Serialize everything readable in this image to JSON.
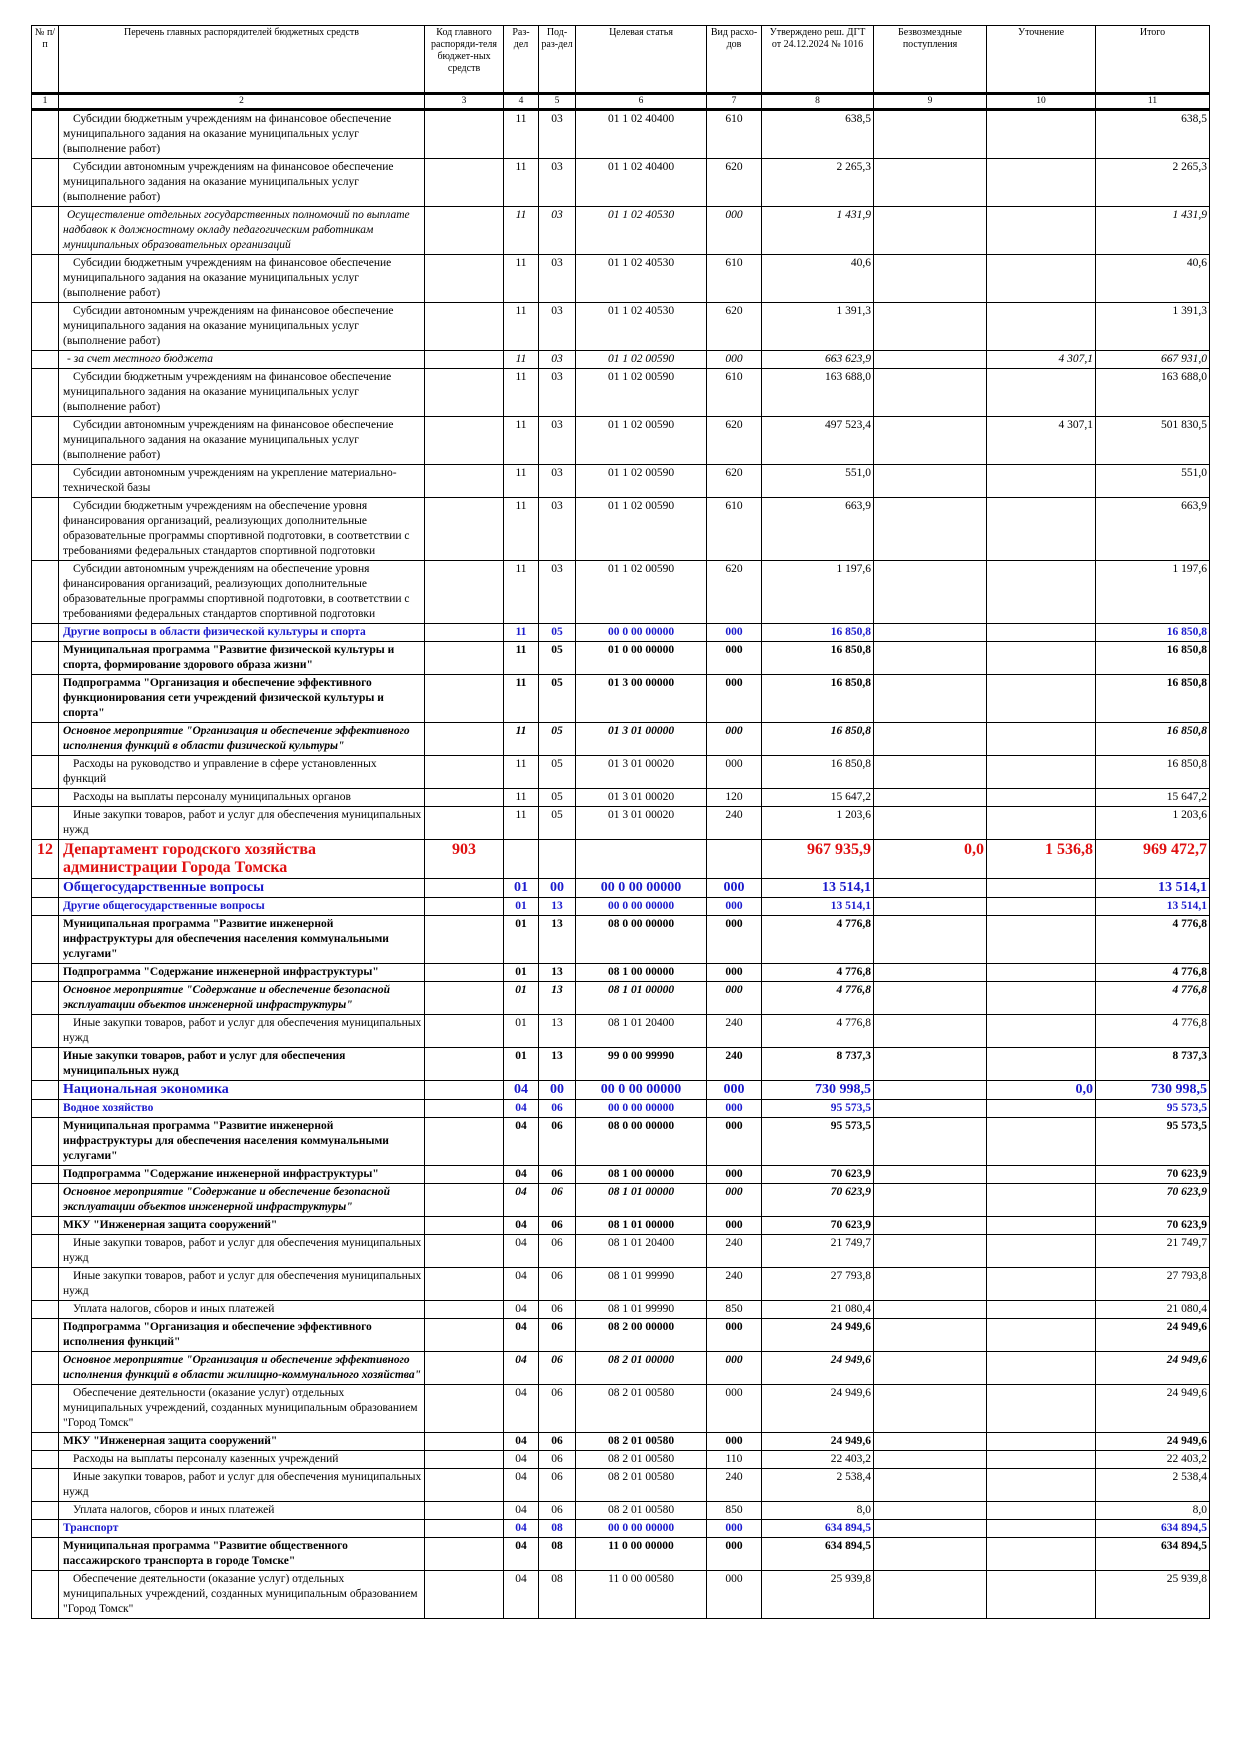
{
  "table": {
    "columns": [
      "№ п/п",
      "Перечень главных распорядителей бюджетных средств",
      "Код главного распоряди-теля бюджет-ных средств",
      "Раз-дел",
      "Под-раз-дел",
      "Целевая статья",
      "Вид расхо-дов",
      "Утверждено реш. ДГТ от 24.12.2024 № 1016",
      "Безвозмездные поступления",
      "Уточнение",
      "Итого"
    ],
    "numbers": [
      "1",
      "2",
      "3",
      "4",
      "5",
      "6",
      "7",
      "8",
      "9",
      "10",
      "11"
    ],
    "rows": [
      [
        "",
        "Субсидии бюджетным учреждениям на финансовое обеспечение муниципального задания на оказание  муниципальных услуг (выполнение работ)",
        "",
        "11",
        "03",
        "01 1 02 40400",
        "610",
        "638,5",
        "",
        "",
        "638,5"
      ],
      [
        "",
        "Субсидии автономным учреждениям на финансовое обеспечение муниципального задания на оказание  муниципальных услуг (выполнение работ)",
        "",
        "11",
        "03",
        "01 1 02 40400",
        "620",
        "2 265,3",
        "",
        "",
        "2 265,3"
      ],
      [
        "",
        "Осуществление отдельных государственных полномочий по выплате надбавок к должностному окладу педагогическим работникам муниципальных образовательных организаций",
        "",
        "11",
        "03",
        "01 1 02 40530",
        "000",
        "1 431,9",
        "",
        "",
        "1 431,9"
      ],
      [
        "",
        "Субсидии бюджетным учреждениям на финансовое обеспечение муниципального задания на оказание  муниципальных услуг (выполнение работ)",
        "",
        "11",
        "03",
        "01 1 02 40530",
        "610",
        "40,6",
        "",
        "",
        "40,6"
      ],
      [
        "",
        "Субсидии автономным учреждениям на финансовое обеспечение муниципального задания на оказание  муниципальных услуг (выполнение работ)",
        "",
        "11",
        "03",
        "01 1 02 40530",
        "620",
        "1 391,3",
        "",
        "",
        "1 391,3"
      ],
      [
        "",
        "- за счет местного бюджета",
        "",
        "11",
        "03",
        "01 1 02 00590",
        "000",
        "663 623,9",
        "",
        "4 307,1",
        "667 931,0"
      ],
      [
        "",
        "Субсидии бюджетным учреждениям на финансовое обеспечение муниципального задания на оказание  муниципальных услуг (выполнение работ)",
        "",
        "11",
        "03",
        "01 1 02 00590",
        "610",
        "163 688,0",
        "",
        "",
        "163 688,0"
      ],
      [
        "",
        "Субсидии автономным учреждениям на финансовое обеспечение муниципального задания на оказание  муниципальных услуг (выполнение работ)",
        "",
        "11",
        "03",
        "01 1 02 00590",
        "620",
        "497 523,4",
        "",
        "4 307,1",
        "501 830,5"
      ],
      [
        "",
        "Субсидии автономным учреждениям на укрепление материально-технической базы",
        "",
        "11",
        "03",
        "01 1 02 00590",
        "620",
        "551,0",
        "",
        "",
        "551,0"
      ],
      [
        "",
        "Субсидии бюджетным учреждениям на обеспечение уровня финансирования организаций, реализующих дополнительные образовательные программы спортивной подготовки, в соответствии с требованиями федеральных стандартов спортивной подготовки",
        "",
        "11",
        "03",
        "01 1 02 00590",
        "610",
        "663,9",
        "",
        "",
        "663,9"
      ],
      [
        "",
        "Субсидии автономным учреждениям на обеспечение уровня финансирования организаций, реализующих дополнительные образовательные программы спортивной подготовки, в соответствии с требованиями федеральных стандартов спортивной подготовки",
        "",
        "11",
        "03",
        "01 1 02 00590",
        "620",
        "1 197,6",
        "",
        "",
        "1 197,6"
      ],
      [
        "",
        "Другие вопросы в области физической культуры и спорта",
        "",
        "11",
        "05",
        "00 0 00 00000",
        "000",
        "16 850,8",
        "",
        "",
        "16 850,8"
      ],
      [
        "",
        "Муниципальная программа \"Развитие физической культуры и спорта, формирование здорового образа жизни\"",
        "",
        "11",
        "05",
        "01 0 00 00000",
        "000",
        "16 850,8",
        "",
        "",
        "16 850,8"
      ],
      [
        "",
        "Подпрограмма \"Организация и обеспечение эффективного функционирования сети учреждений физической культуры и спорта\"",
        "",
        "11",
        "05",
        "01 3 00 00000",
        "000",
        "16 850,8",
        "",
        "",
        "16 850,8"
      ],
      [
        "",
        "Основное мероприятие \"Организация и обеспечение эффективного исполнения функций в области физической культуры\"",
        "",
        "11",
        "05",
        "01 3 01 00000",
        "000",
        "16 850,8",
        "",
        "",
        "16 850,8"
      ],
      [
        "",
        "Расходы на руководство и управление в сфере установленных функций",
        "",
        "11",
        "05",
        "01 3 01 00020",
        "000",
        "16 850,8",
        "",
        "",
        "16 850,8"
      ],
      [
        "",
        "Расходы на выплаты персоналу муниципальных органов",
        "",
        "11",
        "05",
        "01 3 01 00020",
        "120",
        "15 647,2",
        "",
        "",
        "15 647,2"
      ],
      [
        "",
        "Иные закупки товаров, работ и услуг для обеспечения муниципальных нужд",
        "",
        "11",
        "05",
        "01 3 01 00020",
        "240",
        "1 203,6",
        "",
        "",
        "1 203,6"
      ],
      [
        "12",
        "Департамент городского хозяйства администрации Города Томска",
        "903",
        "",
        "",
        "",
        "",
        "967 935,9",
        "0,0",
        "1 536,8",
        "969 472,7"
      ],
      [
        "",
        "Общегосударственные вопросы",
        "",
        "01",
        "00",
        "00 0 00 00000",
        "000",
        "13 514,1",
        "",
        "",
        "13 514,1"
      ],
      [
        "",
        "Другие общегосударственные вопросы",
        "",
        "01",
        "13",
        "00 0 00 00000",
        "000",
        "13 514,1",
        "",
        "",
        "13 514,1"
      ],
      [
        "",
        "Муниципальная программа \"Развитие инженерной инфраструктуры для обеспечения населения коммунальными услугами\"",
        "",
        "01",
        "13",
        "08 0 00 00000",
        "000",
        "4 776,8",
        "",
        "",
        "4 776,8"
      ],
      [
        "",
        "Подпрограмма \"Содержание инженерной инфраструктуры\"",
        "",
        "01",
        "13",
        "08 1 00 00000",
        "000",
        "4 776,8",
        "",
        "",
        "4 776,8"
      ],
      [
        "",
        "Основное мероприятие \"Содержание и обеспечение безопасной эксплуатации объектов инженерной инфраструктуры\"",
        "",
        "01",
        "13",
        "08 1 01 00000",
        "000",
        "4 776,8",
        "",
        "",
        "4 776,8"
      ],
      [
        "",
        "Иные закупки товаров, работ и услуг для обеспечения муниципальных нужд",
        "",
        "01",
        "13",
        "08 1 01 20400",
        "240",
        "4 776,8",
        "",
        "",
        "4 776,8"
      ],
      [
        "",
        "Иные закупки товаров, работ и услуг для обеспечения муниципальных нужд",
        "",
        "01",
        "13",
        "99 0 00 99990",
        "240",
        "8 737,3",
        "",
        "",
        "8 737,3"
      ],
      [
        "",
        "Национальная экономика",
        "",
        "04",
        "00",
        "00 0 00 00000",
        "000",
        "730 998,5",
        "",
        "0,0",
        "730 998,5"
      ],
      [
        "",
        "Водное хозяйство",
        "",
        "04",
        "06",
        "00 0 00 00000",
        "000",
        "95 573,5",
        "",
        "",
        "95 573,5"
      ],
      [
        "",
        "Муниципальная программа \"Развитие инженерной инфраструктуры для обеспечения населения коммунальными услугами\"",
        "",
        "04",
        "06",
        "08 0 00 00000",
        "000",
        "95 573,5",
        "",
        "",
        "95 573,5"
      ],
      [
        "",
        "Подпрограмма \"Содержание инженерной инфраструктуры\"",
        "",
        "04",
        "06",
        "08 1 00 00000",
        "000",
        "70 623,9",
        "",
        "",
        "70 623,9"
      ],
      [
        "",
        "Основное мероприятие \"Содержание и обеспечение безопасной эксплуатации объектов инженерной инфраструктуры\"",
        "",
        "04",
        "06",
        "08 1 01 00000",
        "000",
        "70 623,9",
        "",
        "",
        "70 623,9"
      ],
      [
        "",
        "МКУ \"Инженерная защита сооружений\"",
        "",
        "04",
        "06",
        "08 1 01 00000",
        "000",
        "70 623,9",
        "",
        "",
        "70 623,9"
      ],
      [
        "",
        "Иные закупки товаров, работ и услуг для обеспечения муниципальных нужд",
        "",
        "04",
        "06",
        "08 1 01 20400",
        "240",
        "21 749,7",
        "",
        "",
        "21 749,7"
      ],
      [
        "",
        "Иные закупки товаров, работ и услуг для обеспечения муниципальных нужд",
        "",
        "04",
        "06",
        "08 1 01 99990",
        "240",
        "27 793,8",
        "",
        "",
        "27 793,8"
      ],
      [
        "",
        "Уплата налогов, сборов и иных платежей",
        "",
        "04",
        "06",
        "08 1 01 99990",
        "850",
        "21 080,4",
        "",
        "",
        "21 080,4"
      ],
      [
        "",
        "Подпрограмма \"Организация и обеспечение эффективного исполнения функций\"",
        "",
        "04",
        "06",
        "08 2 00 00000",
        "000",
        "24 949,6",
        "",
        "",
        "24 949,6"
      ],
      [
        "",
        "Основное мероприятие \"Организация и обеспечение эффективного исполнения функций в области жилищно-коммунального хозяйства\"",
        "",
        "04",
        "06",
        "08 2 01 00000",
        "000",
        "24 949,6",
        "",
        "",
        "24 949,6"
      ],
      [
        "",
        "Обеспечение деятельности (оказание услуг) отдельных муниципальных учреждений, созданных муниципальным образованием \"Город Томск\"",
        "",
        "04",
        "06",
        "08 2 01 00580",
        "000",
        "24 949,6",
        "",
        "",
        "24 949,6"
      ],
      [
        "",
        "МКУ \"Инженерная защита сооружений\"",
        "",
        "04",
        "06",
        "08 2 01 00580",
        "000",
        "24 949,6",
        "",
        "",
        "24 949,6"
      ],
      [
        "",
        "Расходы на выплаты персоналу казенных учреждений",
        "",
        "04",
        "06",
        "08 2 01 00580",
        "110",
        "22 403,2",
        "",
        "",
        "22 403,2"
      ],
      [
        "",
        "Иные закупки товаров, работ и услуг для обеспечения муниципальных нужд",
        "",
        "04",
        "06",
        "08 2 01 00580",
        "240",
        "2 538,4",
        "",
        "",
        "2 538,4"
      ],
      [
        "",
        "Уплата налогов, сборов и иных платежей",
        "",
        "04",
        "06",
        "08 2 01 00580",
        "850",
        "8,0",
        "",
        "",
        "8,0"
      ],
      [
        "",
        "Транспорт",
        "",
        "04",
        "08",
        "00 0 00 00000",
        "000",
        "634 894,5",
        "",
        "",
        "634 894,5"
      ],
      [
        "",
        "Муниципальная программа \"Развитие общественного пассажирского транспорта в городе Томске\"",
        "",
        "04",
        "08",
        "11 0 00 00000",
        "000",
        "634 894,5",
        "",
        "",
        "634 894,5"
      ],
      [
        "",
        "Обеспечение деятельности (оказание услуг) отдельных муниципальных учреждений, созданных муниципальным образованием \"Город Томск\"",
        "",
        "04",
        "08",
        "11 0 00 00580",
        "000",
        "25 939,8",
        "",
        "",
        "25 939,8"
      ]
    ]
  }
}
